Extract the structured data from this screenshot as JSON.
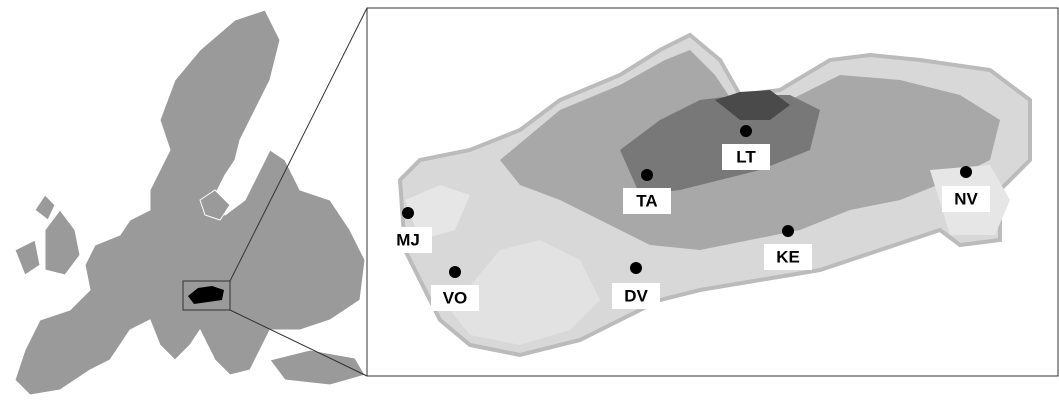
{
  "sites": [
    {
      "label": "MJ"
    },
    {
      "label": "VO"
    },
    {
      "label": "DV"
    },
    {
      "label": "TA"
    },
    {
      "label": "LT"
    },
    {
      "label": "KE"
    },
    {
      "label": "NV"
    }
  ]
}
